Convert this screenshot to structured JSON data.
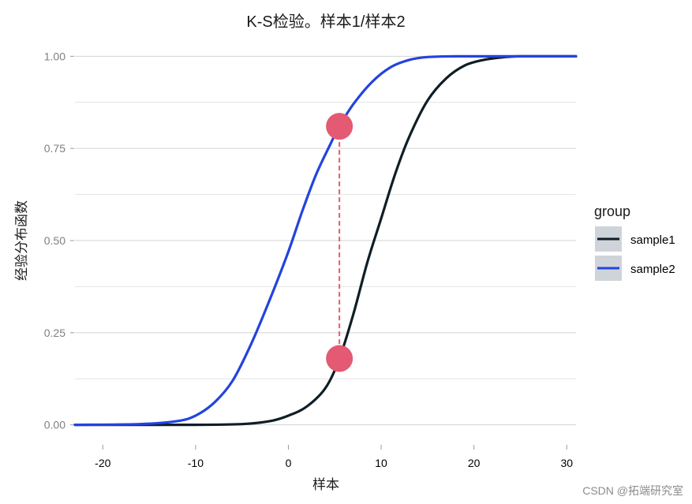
{
  "chart_data": {
    "type": "line",
    "title": "K-S检验。样本1/样本2",
    "xlabel": "样本",
    "ylabel": "经验分布函数",
    "xlim": [
      -23,
      31
    ],
    "ylim": [
      -0.05,
      1.05
    ],
    "x_ticks": [
      -20,
      -10,
      0,
      10,
      20,
      30
    ],
    "y_ticks": [
      0.0,
      0.25,
      0.5,
      0.75,
      1.0
    ],
    "x_tick_labels": [
      "-20",
      "-10",
      "0",
      "10",
      "20",
      "30"
    ],
    "y_tick_labels": [
      "0.00",
      "0.25",
      "0.50",
      "0.75",
      "1.00"
    ],
    "grid": "horizontal",
    "legend": {
      "title": "group",
      "position": "right",
      "entries": [
        "sample1",
        "sample2"
      ]
    },
    "series": [
      {
        "name": "sample1",
        "color": "#0f1e26",
        "x": [
          -23,
          -15,
          -10,
          -5,
          -2,
          0,
          2,
          4,
          5.5,
          7,
          8.5,
          10,
          11.5,
          13,
          15,
          17,
          19,
          21,
          23,
          25,
          31
        ],
        "y": [
          0.0,
          0.0,
          0.0,
          0.002,
          0.01,
          0.025,
          0.05,
          0.1,
          0.18,
          0.3,
          0.44,
          0.56,
          0.68,
          0.78,
          0.88,
          0.94,
          0.975,
          0.99,
          0.997,
          1.0,
          1.0
        ]
      },
      {
        "name": "sample2",
        "color": "#2244dd",
        "x": [
          -23,
          -16,
          -12,
          -10,
          -8,
          -6,
          -4,
          -2,
          0,
          1.5,
          3,
          4.5,
          5.5,
          7,
          9,
          11,
          13,
          15,
          18,
          22,
          31
        ],
        "y": [
          0.0,
          0.002,
          0.01,
          0.025,
          0.06,
          0.12,
          0.22,
          0.34,
          0.47,
          0.58,
          0.68,
          0.76,
          0.81,
          0.87,
          0.93,
          0.97,
          0.99,
          0.998,
          1.0,
          1.0,
          1.0
        ]
      }
    ],
    "annotation": {
      "type": "ks-max-distance",
      "x": 5.5,
      "y_low": 0.18,
      "y_high": 0.81,
      "color": "#e35a72"
    }
  },
  "watermark": "CSDN @拓端研究室"
}
